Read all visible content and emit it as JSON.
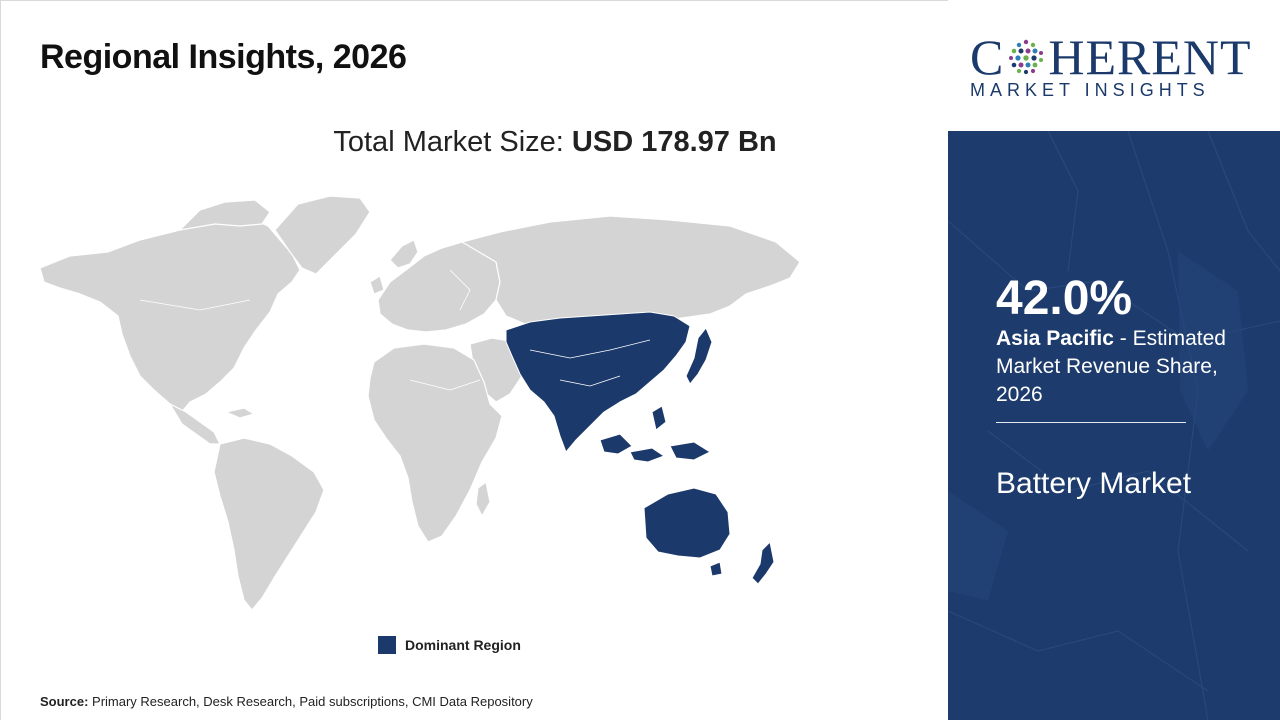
{
  "title": "Regional Insights, 2026",
  "market_size": {
    "label": "Total Market Size:",
    "value": "USD 178.97 Bn"
  },
  "legend": {
    "label": "Dominant Region",
    "color": "#1b3a6b"
  },
  "source": {
    "label": "Source:",
    "text": "Primary Research, Desk Research, Paid subscriptions, CMI Data Repository"
  },
  "logo": {
    "text_before": "C",
    "text_after": "HERENT",
    "subtitle": "MARKET INSIGHTS"
  },
  "highlight": {
    "share": "42.0%",
    "region": "Asia Pacific",
    "description": "- Estimated Market Revenue Share, 2026",
    "market_name": "Battery Market"
  },
  "colors": {
    "accent_navy": "#1d3b6c",
    "map_gray": "#d4d4d4"
  }
}
